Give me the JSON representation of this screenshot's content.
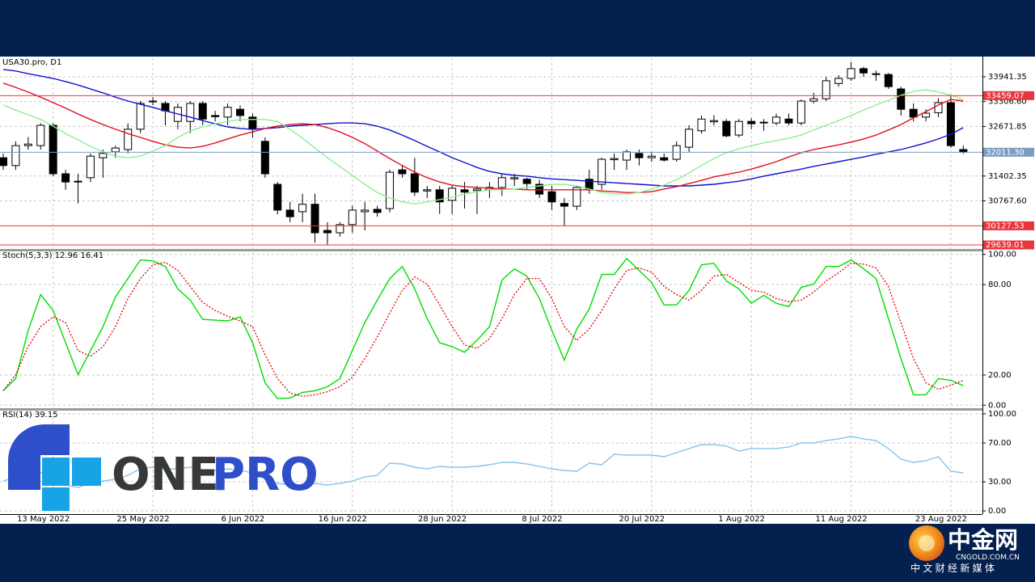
{
  "chart_data": [
    {
      "type": "candlestick",
      "title": "USA30.pro, D1",
      "categories": [
        null,
        null,
        null,
        null,
        "13 May 2022",
        null,
        null,
        null,
        null,
        null,
        null,
        null,
        "25 May 2022",
        null,
        null,
        null,
        null,
        null,
        null,
        null,
        "6 Jun 2022",
        null,
        null,
        null,
        null,
        null,
        null,
        null,
        "16 Jun 2022",
        null,
        null,
        null,
        null,
        null,
        null,
        null,
        "28 Jun 2022",
        null,
        null,
        null,
        null,
        null,
        null,
        null,
        "8 Jul 2022",
        null,
        null,
        null,
        null,
        null,
        null,
        null,
        "20 Jul 2022",
        null,
        null,
        null,
        null,
        null,
        null,
        null,
        "1 Aug 2022",
        null,
        null,
        null,
        null,
        null,
        null,
        null,
        "11 Aug 2022",
        null,
        null,
        null,
        null,
        null,
        null,
        null,
        "23 Aug 2022",
        null
      ],
      "open": [
        31870,
        31670,
        32180,
        32180,
        32700,
        31460,
        31250,
        31360,
        31870,
        32020,
        32080,
        32600,
        33300,
        33260,
        32800,
        32800,
        33260,
        32950,
        32910,
        33110,
        32910,
        32290,
        31190,
        30530,
        30490,
        30680,
        30010,
        29950,
        30160,
        30490,
        30550,
        30570,
        31560,
        31460,
        31020,
        31050,
        30780,
        31050,
        31030,
        31050,
        31110,
        31330,
        31320,
        31190,
        31000,
        30700,
        30630,
        31320,
        31190,
        31820,
        31810,
        31980,
        31870,
        31870,
        31830,
        32140,
        32560,
        32790,
        32800,
        32450,
        32800,
        32780,
        32760,
        32860,
        32760,
        33320,
        33380,
        33770,
        33900,
        34150,
        34020,
        34000,
        33630,
        33110,
        32910,
        33020,
        33280,
        32080
      ],
      "high": [
        31980,
        32290,
        32400,
        32750,
        32750,
        31560,
        31460,
        31980,
        32080,
        32180,
        32750,
        33320,
        33420,
        33320,
        33260,
        33320,
        33320,
        33070,
        33260,
        33210,
        33000,
        32390,
        31250,
        30740,
        30950,
        30950,
        30220,
        30220,
        30640,
        30740,
        30640,
        31560,
        31660,
        31870,
        31150,
        31150,
        31150,
        31250,
        31150,
        31250,
        31460,
        31460,
        31360,
        31300,
        31150,
        30840,
        31150,
        31560,
        31870,
        31980,
        32080,
        32080,
        32020,
        31980,
        32290,
        32700,
        32950,
        32960,
        32860,
        32860,
        32880,
        32860,
        33000,
        33000,
        33360,
        33530,
        33940,
        33980,
        34320,
        34200,
        34100,
        34040,
        33690,
        33260,
        33110,
        33390,
        33460,
        32180
      ],
      "low": [
        31560,
        31560,
        32080,
        32080,
        31400,
        31050,
        30700,
        31250,
        31360,
        31870,
        31980,
        32500,
        33210,
        32700,
        32600,
        32500,
        32700,
        32800,
        32700,
        32800,
        32390,
        31360,
        30420,
        30220,
        30220,
        29700,
        29650,
        29850,
        29950,
        30010,
        30360,
        30470,
        31360,
        30890,
        30840,
        30430,
        30430,
        30570,
        30430,
        30840,
        30890,
        31150,
        31050,
        30840,
        30530,
        30120,
        30530,
        30950,
        31050,
        31560,
        31560,
        31670,
        31770,
        31770,
        31770,
        32020,
        32490,
        32700,
        32390,
        32390,
        32600,
        32560,
        32700,
        32700,
        32700,
        33260,
        33320,
        33690,
        33840,
        33940,
        33840,
        33630,
        32950,
        32800,
        32800,
        32910,
        32130,
        31970
      ],
      "close": [
        31670,
        32180,
        32220,
        32700,
        31460,
        31250,
        31270,
        31910,
        31980,
        32120,
        32600,
        33260,
        33320,
        33070,
        33160,
        33260,
        32860,
        32920,
        33160,
        32950,
        32600,
        31460,
        30530,
        30360,
        30680,
        29950,
        29950,
        30160,
        30530,
        30530,
        30470,
        31500,
        31460,
        30990,
        31050,
        30740,
        31090,
        30990,
        31070,
        31110,
        31360,
        31360,
        31210,
        30940,
        30740,
        30630,
        31110,
        31050,
        31830,
        31850,
        32020,
        31870,
        31910,
        31810,
        32180,
        32600,
        32860,
        32820,
        32430,
        32800,
        32740,
        32760,
        32910,
        32760,
        33320,
        33380,
        33840,
        33900,
        34150,
        34040,
        34000,
        33690,
        33110,
        32910,
        33010,
        33280,
        32180,
        32011.3
      ],
      "up_color": "#ffffff",
      "down_color": "#000000",
      "outline_color": "#000000",
      "series": [
        {
          "color": "#1010d0",
          "values": [
            34130,
            34090,
            34020,
            33960,
            33900,
            33820,
            33730,
            33630,
            33530,
            33420,
            33320,
            33240,
            33160,
            33070,
            32990,
            32910,
            32820,
            32740,
            32660,
            32620,
            32600,
            32620,
            32640,
            32680,
            32700,
            32720,
            32740,
            32760,
            32760,
            32740,
            32680,
            32580,
            32450,
            32310,
            32160,
            32020,
            31870,
            31750,
            31620,
            31520,
            31460,
            31420,
            31400,
            31360,
            31330,
            31310,
            31290,
            31270,
            31250,
            31230,
            31210,
            31190,
            31170,
            31150,
            31150,
            31150,
            31170,
            31190,
            31230,
            31270,
            31330,
            31400,
            31460,
            31520,
            31580,
            31650,
            31710,
            31770,
            31830,
            31890,
            31960,
            32020,
            32080,
            32160,
            32250,
            32350,
            32470,
            32640
          ]
        },
        {
          "color": "#e01020",
          "values": [
            33780,
            33670,
            33550,
            33420,
            33280,
            33140,
            32990,
            32850,
            32720,
            32600,
            32490,
            32390,
            32290,
            32200,
            32140,
            32120,
            32160,
            32250,
            32350,
            32450,
            32530,
            32620,
            32680,
            32720,
            32740,
            32720,
            32640,
            32530,
            32390,
            32230,
            32040,
            31850,
            31670,
            31500,
            31360,
            31250,
            31170,
            31130,
            31110,
            31090,
            31070,
            31070,
            31050,
            31050,
            31050,
            31050,
            31050,
            31050,
            31020,
            31000,
            30980,
            30980,
            31000,
            31070,
            31130,
            31210,
            31290,
            31380,
            31440,
            31500,
            31580,
            31670,
            31770,
            31890,
            32000,
            32080,
            32140,
            32200,
            32270,
            32350,
            32450,
            32580,
            32720,
            32890,
            33050,
            33220,
            33360,
            33320
          ]
        },
        {
          "color": "#90ee90",
          "values": [
            33220,
            33090,
            32970,
            32850,
            32680,
            32490,
            32330,
            32160,
            32020,
            31910,
            31870,
            31910,
            32040,
            32180,
            32390,
            32560,
            32660,
            32740,
            32800,
            32850,
            32850,
            32850,
            32800,
            32600,
            32370,
            32120,
            31870,
            31650,
            31420,
            31190,
            30980,
            30840,
            30740,
            30690,
            30740,
            30800,
            30860,
            30940,
            31000,
            31050,
            31050,
            31070,
            31110,
            31150,
            31190,
            31190,
            31150,
            31070,
            30980,
            30940,
            30940,
            30980,
            31070,
            31170,
            31310,
            31480,
            31670,
            31850,
            32000,
            32100,
            32180,
            32250,
            32310,
            32370,
            32450,
            32580,
            32700,
            32820,
            32950,
            33090,
            33220,
            33340,
            33470,
            33570,
            33610,
            33550,
            33470,
            33360
          ]
        }
      ],
      "ylim": [
        29536,
        34417
      ],
      "yticks": [
        33941.35,
        {
          "value": 33306.6,
          "label": "33306.60"
        },
        32671.85,
        31402.35,
        {
          "value": 30767.6,
          "label": "30767.60"
        }
      ],
      "hlines": [
        {
          "value": 33459.07,
          "label": "33459.07",
          "color": "#e8363c"
        },
        {
          "value": 32011.3,
          "label": "32011.30",
          "color": "#7b9cc4"
        },
        {
          "value": 30127.53,
          "label": "30127.53",
          "color": "#e8363c"
        },
        {
          "value": 29639.01,
          "label": "29639.01",
          "color": "#e8363c"
        }
      ],
      "grid": true
    },
    {
      "type": "line",
      "title": "Stoch(5,3,3) 12.96 16.41",
      "series": [
        {
          "color": "#00dd00",
          "line_style": "solid",
          "values": [
            9.6,
            17.6,
            49.5,
            73.4,
            62.8,
            41.5,
            20.2,
            36.2,
            52.1,
            71.8,
            84,
            96.3,
            95.7,
            92,
            77.1,
            69.7,
            56.9,
            56.4,
            55.9,
            58.5,
            41.5,
            14.9,
            4.3,
            4.8,
            8.5,
            9.6,
            12.2,
            17.6,
            36.2,
            54.8,
            69.7,
            84,
            92,
            77.1,
            57.4,
            41.5,
            38.8,
            35.1,
            43.1,
            52.1,
            83,
            90.4,
            85.6,
            70.7,
            49.5,
            29.8,
            50.5,
            63.8,
            86.7,
            86.7,
            97.3,
            89.4,
            81.4,
            66.5,
            66.5,
            76.1,
            93.1,
            94.1,
            82.4,
            77.1,
            67.6,
            72.9,
            67.6,
            65.4,
            78.2,
            80.3,
            92,
            92,
            96.3,
            90.4,
            84,
            57.4,
            30.9,
            6.9,
            6.9,
            17.6,
            16.5,
            12.96
          ]
        },
        {
          "color": "#e00000",
          "line_style": "dotted",
          "values": [
            9.6,
            20.2,
            38.8,
            52.1,
            58.5,
            54.8,
            36.2,
            32.4,
            38.8,
            52.1,
            70.7,
            84,
            93.1,
            94.7,
            89.4,
            78.7,
            68.1,
            62.8,
            59,
            55.9,
            52.1,
            33.5,
            17.6,
            8,
            5.9,
            6.9,
            9,
            12.2,
            18.6,
            30.9,
            45.2,
            61.2,
            76.1,
            85.1,
            80.3,
            66.5,
            52.1,
            39.9,
            37.8,
            44.1,
            57.4,
            73.4,
            84,
            84,
            70.7,
            52.1,
            43.1,
            50.5,
            62.8,
            77.1,
            89.4,
            91,
            88.3,
            78.7,
            73.4,
            69.7,
            76.1,
            85.6,
            86.7,
            81.4,
            76.1,
            75,
            70.7,
            68.6,
            69.7,
            75,
            82.4,
            87.8,
            94.1,
            93.6,
            91,
            78.7,
            54.8,
            30.9,
            14.9,
            10.6,
            13.3,
            16.41
          ]
        }
      ],
      "ylim": [
        -2,
        102
      ],
      "yticks": [
        {
          "value": 100,
          "label": "100.00"
        },
        {
          "value": 80,
          "label": "80.00"
        },
        {
          "value": 20,
          "label": "20.00"
        },
        {
          "value": 0,
          "label": "0.00"
        }
      ],
      "grid": true
    },
    {
      "type": "line",
      "title": "RSI(14) 39.15",
      "series": [
        {
          "color": "#87c3eb",
          "line_style": "solid",
          "values": [
            30.8,
            35,
            36.7,
            39.2,
            39.2,
            26.7,
            24.2,
            28.3,
            30.8,
            32.5,
            36.7,
            43.3,
            45,
            43.3,
            43.3,
            45,
            41.7,
            41.7,
            43.3,
            41.7,
            39.2,
            33.3,
            28.3,
            26.7,
            26.7,
            28.3,
            26.7,
            28.3,
            30.8,
            35,
            36.7,
            49.2,
            48.3,
            45,
            43.3,
            45.8,
            45,
            45,
            45.8,
            47.5,
            50,
            50,
            48.3,
            45.8,
            43.3,
            41.7,
            40.8,
            49.2,
            47.5,
            58.3,
            57.5,
            57.5,
            57.5,
            55.8,
            60,
            64.2,
            68.3,
            68.3,
            66.7,
            61.7,
            64.2,
            64.2,
            64.2,
            65.8,
            70,
            70,
            72.5,
            74.2,
            76.7,
            74.2,
            72.5,
            64.2,
            53.3,
            50,
            51.7,
            55.8,
            40.8,
            39.15
          ]
        }
      ],
      "ylim": [
        -3.3,
        103.3
      ],
      "yticks": [
        {
          "value": 100,
          "label": "100.00"
        },
        {
          "value": 70,
          "label": "70.00"
        },
        {
          "value": 30,
          "label": "30.00"
        },
        {
          "value": 0,
          "label": "0.00"
        }
      ],
      "grid": true
    }
  ],
  "branding": {
    "logo_left": "ONE",
    "logo_right": "PRO",
    "site_name": "中金网",
    "site_url": "CNGOLD.COM.CN",
    "site_slogan": "中 文 财 经 新 媒 体"
  }
}
